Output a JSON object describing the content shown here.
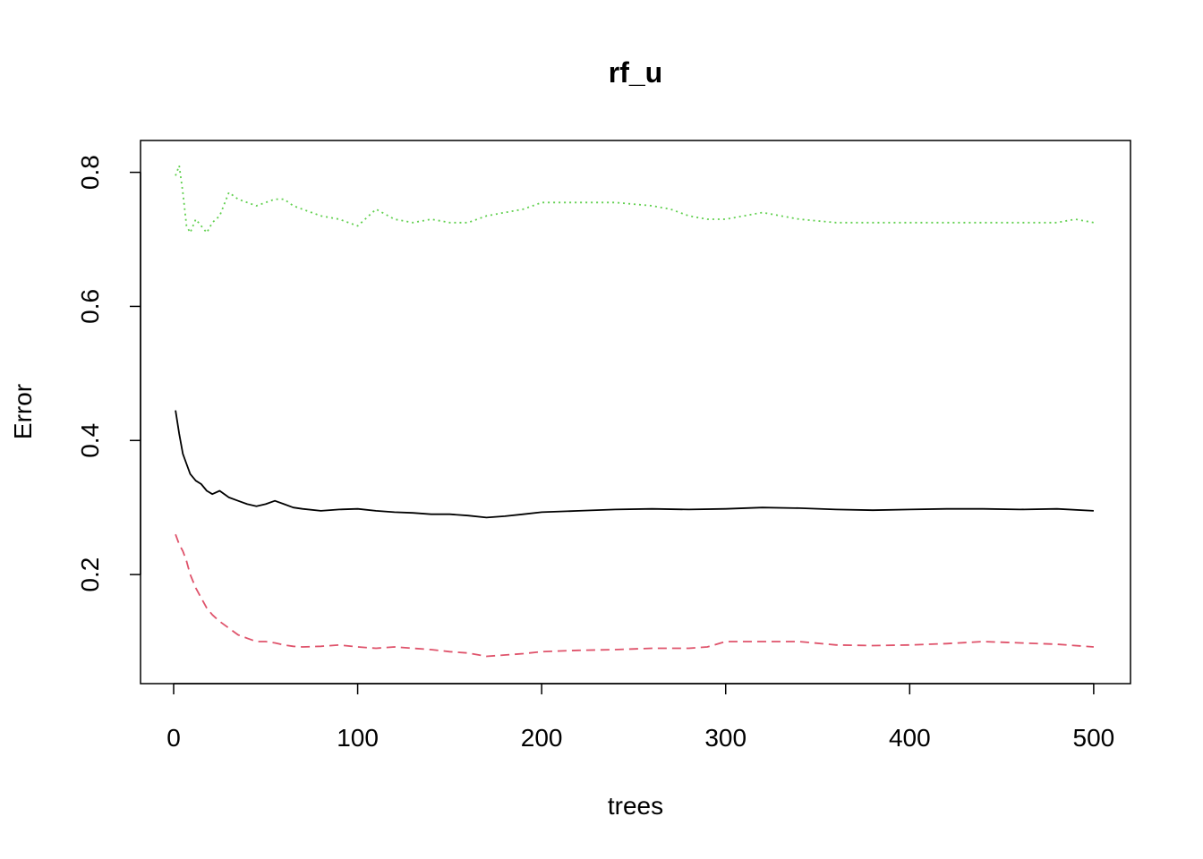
{
  "chart_data": {
    "type": "line",
    "title": "rf_u",
    "xlabel": "trees",
    "ylabel": "Error",
    "xlim": [
      -18,
      520
    ],
    "ylim": [
      0.0373,
      0.8475
    ],
    "xticks": [
      0,
      100,
      200,
      300,
      400,
      500
    ],
    "yticks": [
      0.2,
      0.4,
      0.6,
      0.8
    ],
    "grid": false,
    "legend": "none",
    "series": [
      {
        "color": "#000000",
        "dash": "solid",
        "x": [
          1,
          3,
          5,
          7,
          9,
          12,
          15,
          18,
          21,
          25,
          30,
          35,
          40,
          45,
          50,
          55,
          60,
          65,
          70,
          80,
          90,
          100,
          110,
          120,
          130,
          140,
          150,
          160,
          170,
          180,
          190,
          200,
          220,
          240,
          260,
          280,
          300,
          320,
          340,
          360,
          380,
          400,
          420,
          440,
          460,
          480,
          500
        ],
        "values": [
          0.445,
          0.41,
          0.38,
          0.365,
          0.35,
          0.34,
          0.335,
          0.325,
          0.32,
          0.325,
          0.315,
          0.31,
          0.305,
          0.302,
          0.305,
          0.31,
          0.305,
          0.3,
          0.298,
          0.295,
          0.297,
          0.298,
          0.295,
          0.293,
          0.292,
          0.29,
          0.29,
          0.288,
          0.285,
          0.287,
          0.29,
          0.293,
          0.295,
          0.297,
          0.298,
          0.297,
          0.298,
          0.3,
          0.299,
          0.297,
          0.296,
          0.297,
          0.298,
          0.298,
          0.297,
          0.298,
          0.295
        ]
      },
      {
        "color": "#DF536B",
        "dash": "dashed",
        "x": [
          1,
          3,
          5,
          7,
          9,
          12,
          15,
          18,
          21,
          25,
          30,
          35,
          40,
          45,
          50,
          55,
          60,
          65,
          70,
          80,
          90,
          100,
          110,
          120,
          130,
          140,
          150,
          160,
          170,
          180,
          190,
          200,
          220,
          240,
          260,
          280,
          290,
          300,
          320,
          340,
          360,
          380,
          400,
          420,
          440,
          460,
          480,
          500
        ],
        "values": [
          0.26,
          0.245,
          0.235,
          0.22,
          0.2,
          0.18,
          0.165,
          0.15,
          0.14,
          0.13,
          0.12,
          0.11,
          0.105,
          0.1,
          0.1,
          0.098,
          0.095,
          0.093,
          0.092,
          0.093,
          0.095,
          0.092,
          0.09,
          0.092,
          0.09,
          0.088,
          0.085,
          0.083,
          0.078,
          0.08,
          0.082,
          0.085,
          0.087,
          0.088,
          0.09,
          0.09,
          0.092,
          0.1,
          0.1,
          0.1,
          0.095,
          0.094,
          0.095,
          0.097,
          0.1,
          0.098,
          0.096,
          0.092
        ]
      },
      {
        "color": "#61D04F",
        "dash": "dotted",
        "x": [
          1,
          3,
          5,
          7,
          9,
          12,
          15,
          18,
          21,
          25,
          30,
          35,
          40,
          45,
          50,
          55,
          60,
          65,
          70,
          80,
          90,
          100,
          110,
          120,
          130,
          140,
          150,
          160,
          170,
          180,
          190,
          200,
          220,
          240,
          260,
          270,
          280,
          290,
          300,
          320,
          340,
          360,
          380,
          400,
          420,
          440,
          460,
          480,
          490,
          500
        ],
        "values": [
          0.795,
          0.81,
          0.77,
          0.72,
          0.71,
          0.73,
          0.72,
          0.71,
          0.725,
          0.735,
          0.77,
          0.76,
          0.755,
          0.75,
          0.755,
          0.76,
          0.76,
          0.75,
          0.745,
          0.735,
          0.73,
          0.72,
          0.745,
          0.73,
          0.725,
          0.73,
          0.725,
          0.725,
          0.735,
          0.74,
          0.745,
          0.755,
          0.755,
          0.755,
          0.75,
          0.745,
          0.735,
          0.73,
          0.73,
          0.74,
          0.73,
          0.725,
          0.725,
          0.725,
          0.725,
          0.725,
          0.725,
          0.725,
          0.73,
          0.725
        ]
      }
    ]
  }
}
